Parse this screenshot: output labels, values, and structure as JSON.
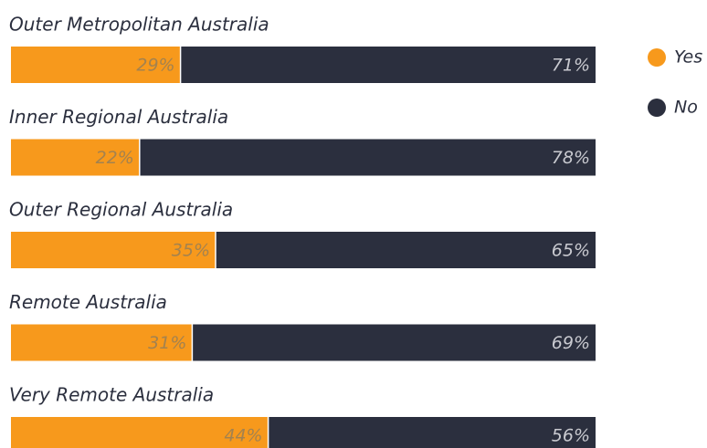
{
  "chart_data": {
    "type": "stacked_barh",
    "categories": [
      "Outer Metropolitan Australia",
      "Inner Regional Australia",
      "Outer Regional Australia",
      "Remote Australia",
      "Very Remote Australia"
    ],
    "series": [
      {
        "name": "Yes",
        "color": "#f7991c",
        "values": [
          29,
          22,
          35,
          31,
          44
        ],
        "value_labels": [
          "29%",
          "22%",
          "35%",
          "31%",
          "44%"
        ]
      },
      {
        "name": "No",
        "color": "#2b2f3e",
        "values": [
          71,
          78,
          65,
          69,
          56
        ],
        "value_labels": [
          "71%",
          "78%",
          "65%",
          "69%",
          "56%"
        ]
      }
    ],
    "xlim": [
      0,
      100
    ]
  }
}
